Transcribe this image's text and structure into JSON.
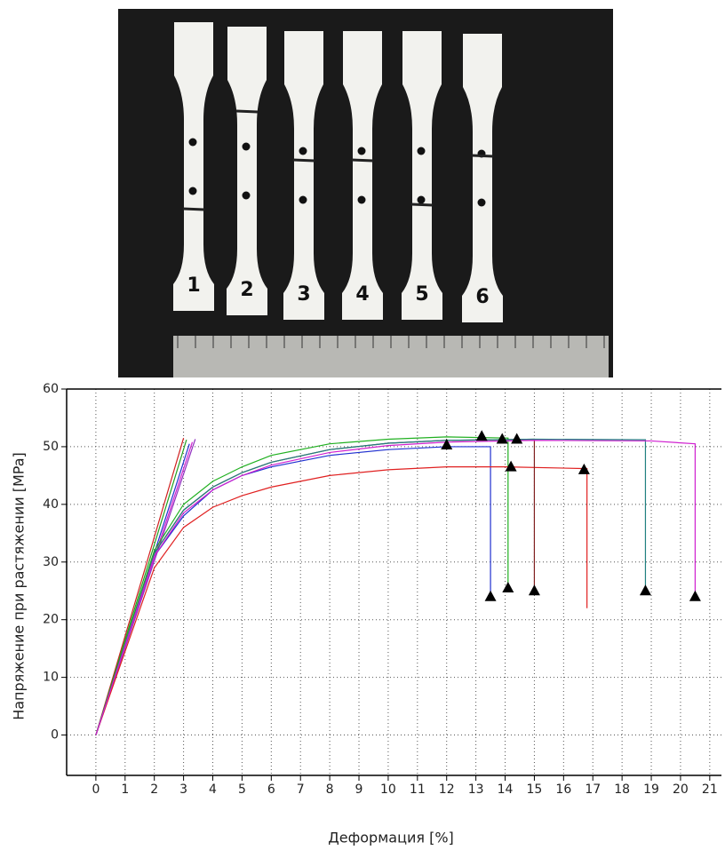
{
  "photo": {
    "specimen_labels": [
      "1",
      "2",
      "3",
      "4",
      "5",
      "6"
    ]
  },
  "chart_data": {
    "type": "line",
    "x_label": "Деформация [%]",
    "y_label": "Напряжение при растяжении [MPa]",
    "xlim": [
      -1,
      21.4
    ],
    "ylim": [
      -7,
      60
    ],
    "xticks": [
      0,
      1,
      2,
      3,
      4,
      5,
      6,
      7,
      8,
      9,
      10,
      11,
      12,
      13,
      14,
      15,
      16,
      17,
      18,
      19,
      20,
      21
    ],
    "yticks": [
      0,
      10,
      20,
      30,
      40,
      50,
      60
    ],
    "grid": true,
    "fit_lines": [
      {
        "color": "#d02020",
        "x": [
          0,
          3.0
        ],
        "y": [
          0,
          51.5
        ]
      },
      {
        "color": "#20a020",
        "x": [
          0,
          3.1
        ],
        "y": [
          0,
          51.2
        ]
      },
      {
        "color": "#2030d0",
        "x": [
          0,
          3.2
        ],
        "y": [
          0,
          50.5
        ]
      },
      {
        "color": "#9030c0",
        "x": [
          0,
          3.4
        ],
        "y": [
          0,
          51.3
        ]
      },
      {
        "color": "#d020d0",
        "x": [
          0,
          3.3
        ],
        "y": [
          0,
          50.8
        ]
      }
    ],
    "series": [
      {
        "color": "#2030d0",
        "x": [
          0,
          2,
          3,
          4,
          5,
          6,
          8,
          10,
          12,
          13.5,
          13.5
        ],
        "y": [
          0,
          31,
          38,
          42.5,
          45,
          46.5,
          48.5,
          49.5,
          50,
          50,
          24
        ]
      },
      {
        "color": "#20b020",
        "x": [
          0,
          2,
          3,
          4,
          5,
          6,
          8,
          10,
          12,
          14.1,
          14.1
        ],
        "y": [
          0,
          32,
          40,
          44,
          46.5,
          48.5,
          50.5,
          51.3,
          51.7,
          51.5,
          25.5
        ]
      },
      {
        "color": "#e02020",
        "x": [
          0,
          2,
          3,
          4,
          5,
          6,
          8,
          10,
          12,
          14,
          16.8,
          16.8
        ],
        "y": [
          0,
          29,
          36,
          39.5,
          41.5,
          43,
          45,
          46,
          46.5,
          46.5,
          46.2,
          22
        ]
      },
      {
        "color": "#802020",
        "x": [
          0,
          2,
          3,
          4,
          5,
          6,
          8,
          10,
          12,
          15,
          15
        ],
        "y": [
          0,
          31.5,
          39,
          43,
          45.5,
          47.3,
          49.5,
          50.6,
          51.1,
          51.3,
          25
        ]
      },
      {
        "color": "#208080",
        "x": [
          0,
          2,
          3,
          4,
          5,
          6,
          8,
          10,
          12,
          15,
          18.8,
          18.8
        ],
        "y": [
          0,
          31.5,
          39,
          43,
          45.5,
          47.3,
          49.5,
          50.6,
          51.1,
          51.3,
          51.2,
          25
        ]
      },
      {
        "color": "#d020d0",
        "x": [
          0,
          2,
          3,
          4,
          5,
          6,
          8,
          10,
          12,
          15,
          19,
          20.5,
          20.5
        ],
        "y": [
          0,
          31,
          38.5,
          42.5,
          45,
          46.8,
          49,
          50.2,
          50.8,
          51.1,
          51,
          50.5,
          24
        ]
      }
    ],
    "markers": {
      "color": "#000000",
      "x": [
        12,
        13.5,
        13.2,
        14.1,
        14.2,
        16.7,
        14.4,
        15,
        13.9,
        18.8,
        20.5
      ],
      "y": [
        50.3,
        24,
        51.8,
        25.5,
        46.5,
        46,
        51.3,
        25,
        51.3,
        25,
        24
      ]
    }
  }
}
